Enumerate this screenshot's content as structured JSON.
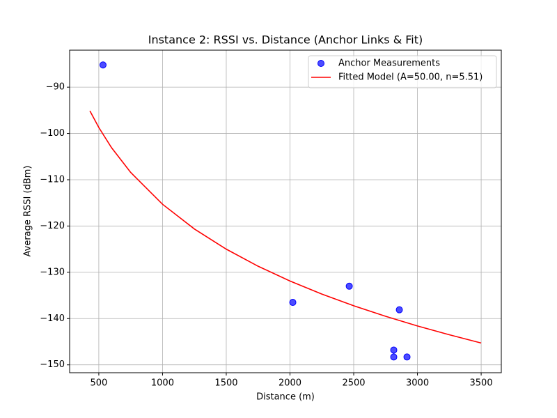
{
  "chart_data": {
    "type": "scatter",
    "title": "Instance 2: RSSI vs. Distance (Anchor Links & Fit)",
    "xlabel": "Distance (m)",
    "ylabel": "Average RSSI (dBm)",
    "xlim": [
      271,
      3658
    ],
    "ylim": [
      -151.7,
      -82.0
    ],
    "xticks": [
      500,
      1000,
      1500,
      2000,
      2500,
      3000,
      3500
    ],
    "yticks": [
      {
        "value": -150,
        "label": "−150"
      },
      {
        "value": -140,
        "label": "−140"
      },
      {
        "value": -130,
        "label": "−130"
      },
      {
        "value": -120,
        "label": "−120"
      },
      {
        "value": -110,
        "label": "−110"
      },
      {
        "value": -100,
        "label": "−100"
      },
      {
        "value": -90,
        "label": "−90"
      }
    ],
    "grid": true,
    "legend": "upper right",
    "series": [
      {
        "name": "Anchor Measurements",
        "type": "scatter",
        "color": "#0000ff",
        "x": [
          533,
          2022,
          2465,
          2858,
          2814,
          2814,
          2918
        ],
        "values": [
          -85.2,
          -136.5,
          -133.0,
          -138.1,
          -146.8,
          -148.3,
          -148.3
        ]
      },
      {
        "name": "Fitted Model (A=50.00, n=5.51)",
        "type": "line",
        "color": "#ff0000",
        "x": [
          430,
          500,
          600,
          750,
          1000,
          1250,
          1500,
          1750,
          2000,
          2250,
          2500,
          2750,
          3000,
          3250,
          3500
        ],
        "values": [
          -95.11,
          -98.71,
          -103.08,
          -108.42,
          -115.3,
          -120.64,
          -125.0,
          -128.69,
          -131.89,
          -134.71,
          -137.23,
          -139.51,
          -141.59,
          -143.5,
          -145.28
        ]
      }
    ]
  }
}
